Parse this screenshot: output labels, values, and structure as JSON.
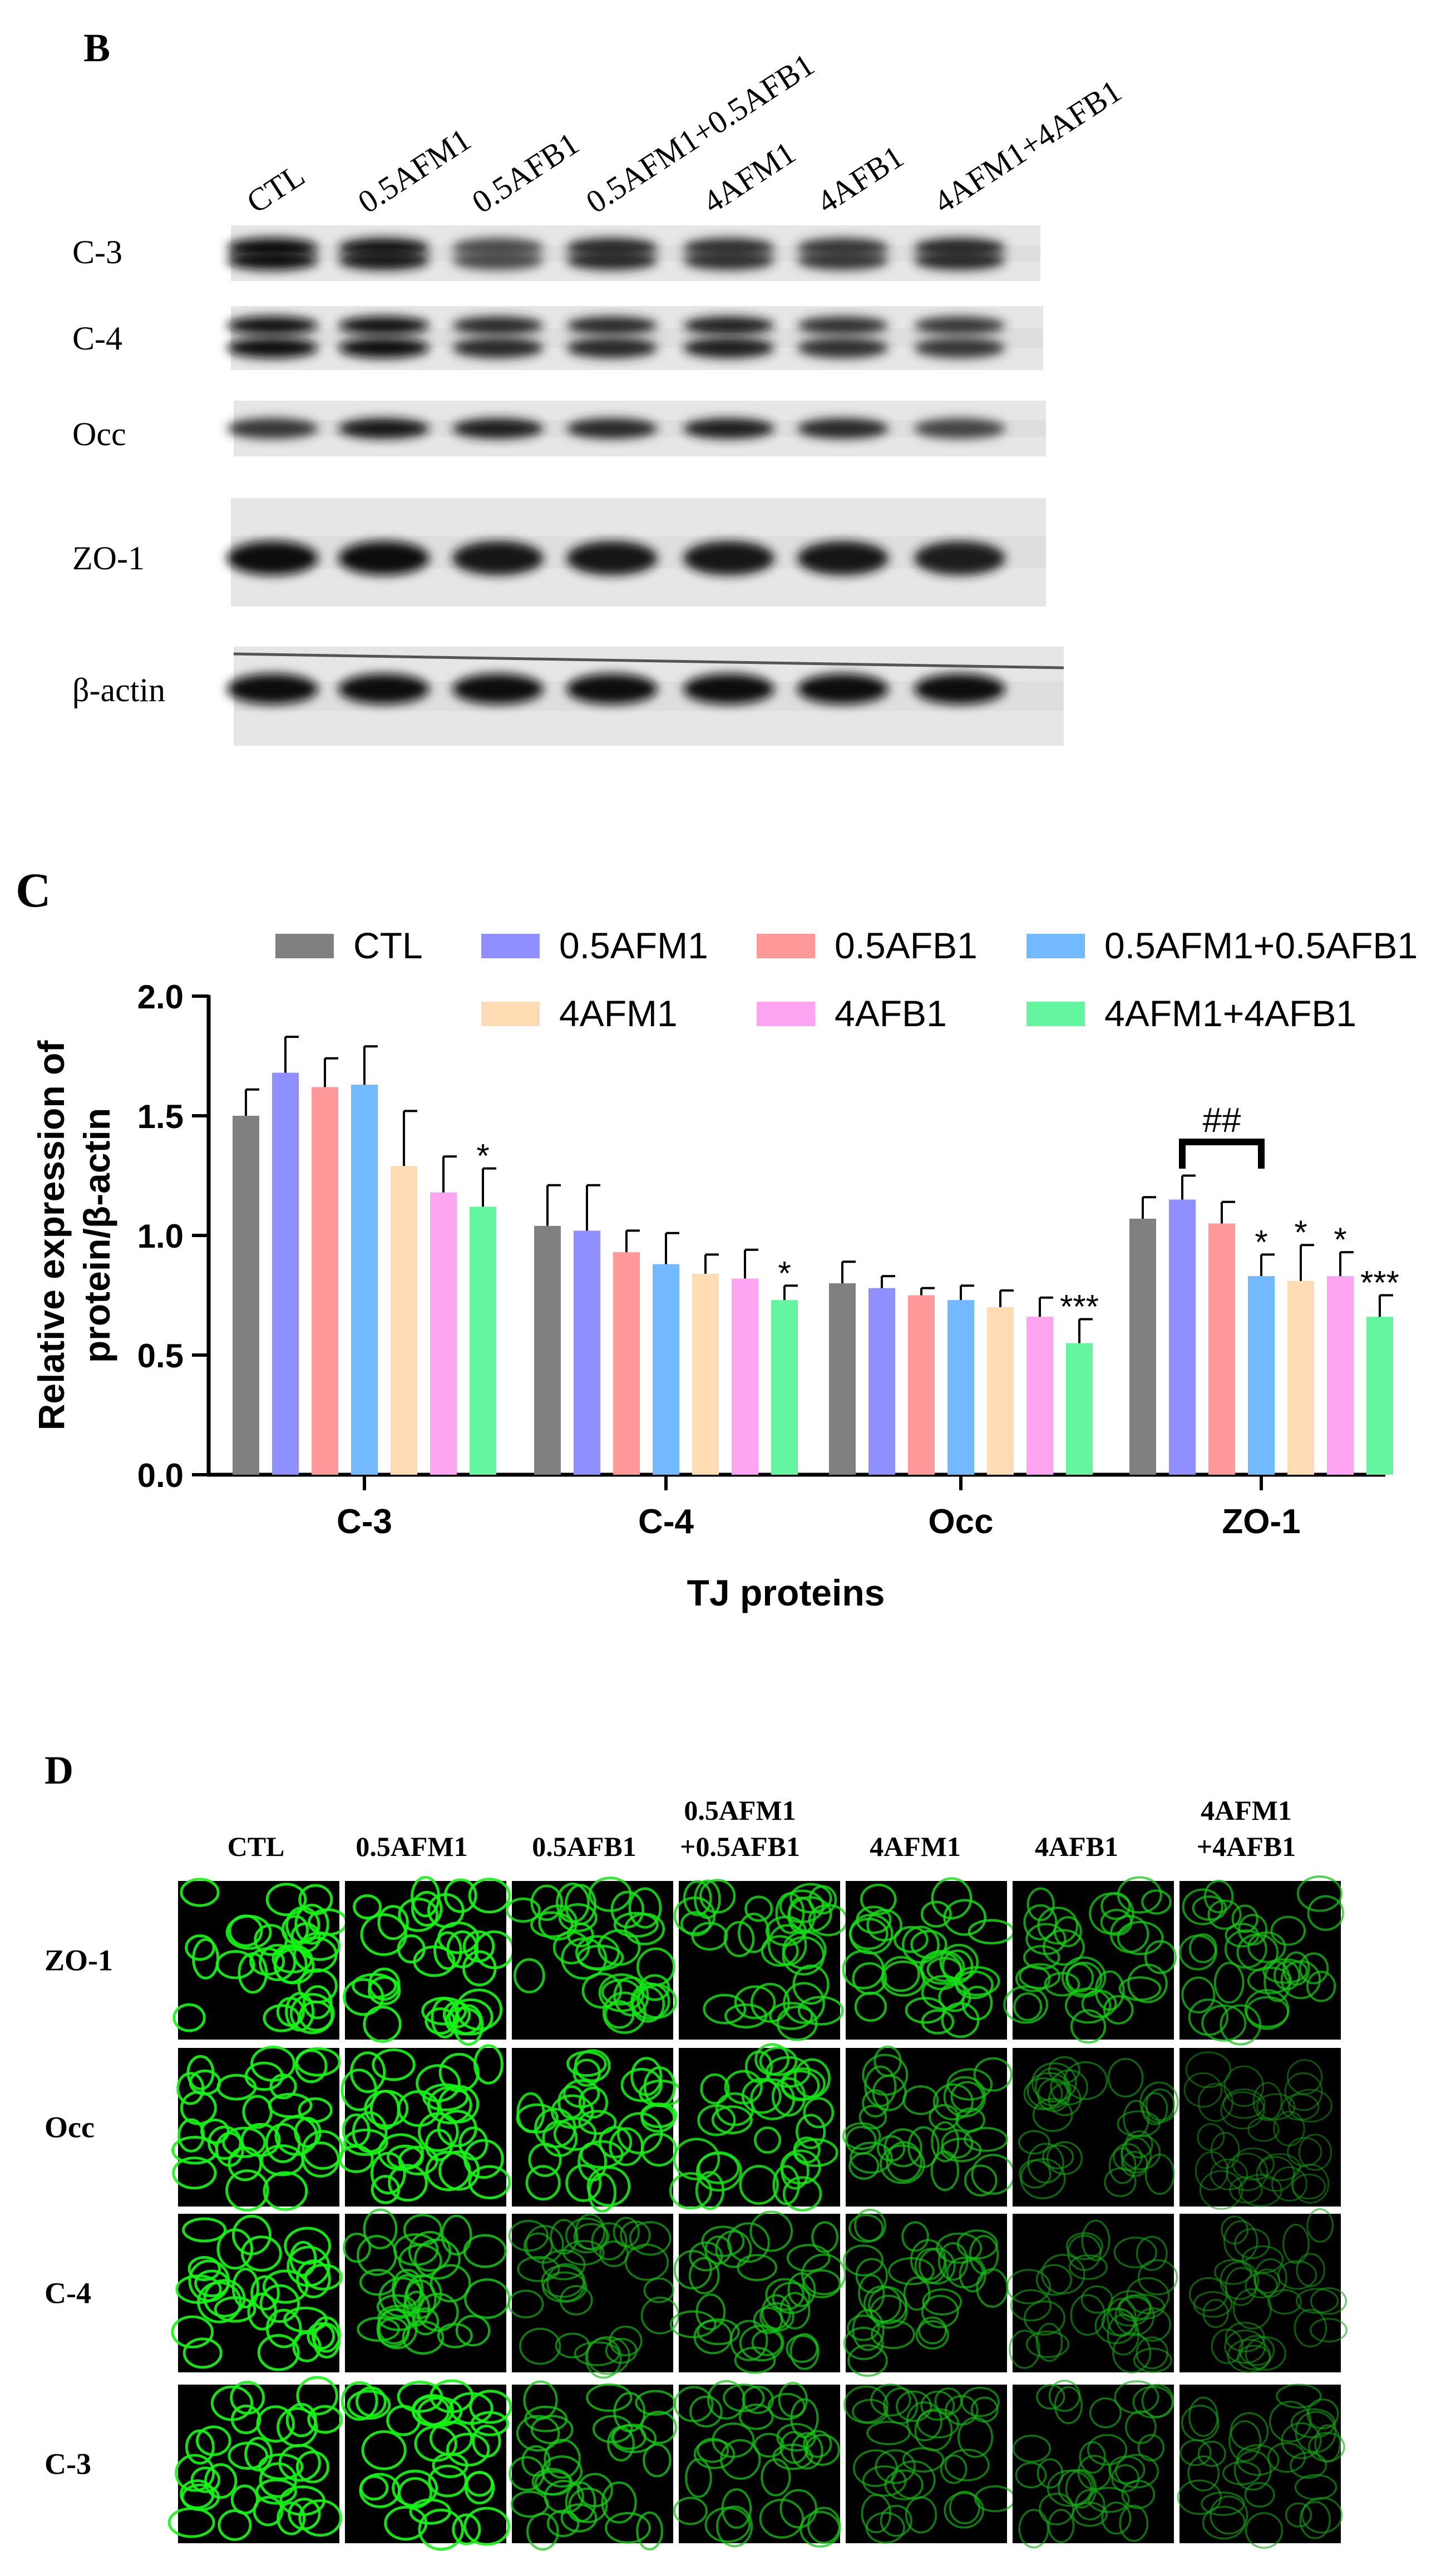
{
  "panels": {
    "B": {
      "letter": "B",
      "lane_labels": [
        "CTL",
        "0.5AFM1",
        "0.5AFB1",
        "0.5AFM1+0.5AFB1",
        "4AFM1",
        "4AFB1",
        "4AFM1+4AFB1"
      ],
      "row_labels": [
        "C-3",
        "C-4",
        "Occ",
        "ZO-1",
        "β-actin"
      ]
    },
    "C": {
      "letter": "C"
    },
    "D": {
      "letter": "D",
      "column_labels": [
        [
          "CTL"
        ],
        [
          "0.5AFM1"
        ],
        [
          "0.5AFB1"
        ],
        [
          "0.5AFM1",
          "+0.5AFB1"
        ],
        [
          "4AFM1"
        ],
        [
          "4AFB1"
        ],
        [
          "4AFM1",
          "+4AFB1"
        ]
      ],
      "row_labels": [
        "ZO-1",
        "Occ",
        "C-4",
        "C-3"
      ],
      "signal_intensity": [
        [
          0.95,
          0.95,
          0.85,
          0.8,
          0.8,
          0.7,
          0.65
        ],
        [
          0.95,
          0.95,
          0.9,
          0.85,
          0.65,
          0.45,
          0.35
        ],
        [
          0.95,
          0.75,
          0.55,
          0.65,
          0.6,
          0.45,
          0.4
        ],
        [
          0.95,
          0.95,
          0.7,
          0.65,
          0.55,
          0.5,
          0.45
        ]
      ]
    }
  },
  "chart_data": {
    "type": "bar",
    "categories": [
      "C-3",
      "C-4",
      "Occ",
      "ZO-1"
    ],
    "xlabel": "TJ proteins",
    "ylabel": [
      "Relative expression of",
      "protein/β-actin"
    ],
    "ylim": [
      0,
      2.0
    ],
    "yticks": [
      "0.0",
      "0.5",
      "1.0",
      "1.5",
      "2.0"
    ],
    "legend_position": "top",
    "grid": false,
    "series": [
      {
        "name": "CTL",
        "color": "#808080",
        "values": [
          1.5,
          1.04,
          0.8,
          1.07
        ],
        "errors": [
          0.11,
          0.17,
          0.09,
          0.09
        ],
        "marks": [
          "",
          "",
          "",
          ""
        ]
      },
      {
        "name": "0.5AFM1",
        "color": "#8f8fff",
        "values": [
          1.68,
          1.02,
          0.78,
          1.15
        ],
        "errors": [
          0.15,
          0.19,
          0.05,
          0.1
        ],
        "marks": [
          "",
          "",
          "",
          ""
        ]
      },
      {
        "name": "0.5AFB1",
        "color": "#ff9999",
        "values": [
          1.62,
          0.93,
          0.75,
          1.05
        ],
        "errors": [
          0.12,
          0.09,
          0.03,
          0.09
        ],
        "marks": [
          "",
          "",
          "",
          ""
        ]
      },
      {
        "name": "0.5AFM1+0.5AFB1",
        "color": "#73b9ff",
        "values": [
          1.63,
          0.88,
          0.73,
          0.83
        ],
        "errors": [
          0.16,
          0.13,
          0.06,
          0.09
        ],
        "marks": [
          "",
          "",
          "",
          "*"
        ]
      },
      {
        "name": "4AFM1",
        "color": "#ffdcb4",
        "values": [
          1.29,
          0.84,
          0.7,
          0.81
        ],
        "errors": [
          0.23,
          0.08,
          0.07,
          0.15
        ],
        "marks": [
          "",
          "",
          "",
          "*"
        ]
      },
      {
        "name": "4AFB1",
        "color": "#ffa4f0",
        "values": [
          1.18,
          0.82,
          0.66,
          0.83
        ],
        "errors": [
          0.15,
          0.12,
          0.08,
          0.1
        ],
        "marks": [
          "",
          "",
          "",
          "*"
        ]
      },
      {
        "name": "4AFM1+4AFB1",
        "color": "#64f5a0",
        "values": [
          1.12,
          0.73,
          0.55,
          0.66
        ],
        "errors": [
          0.16,
          0.06,
          0.1,
          0.09
        ],
        "marks": [
          "*",
          "*",
          "***",
          "***"
        ]
      }
    ],
    "annotations": [
      {
        "text": "##",
        "category": "ZO-1",
        "from_series": 1,
        "to_series": 3
      }
    ]
  }
}
